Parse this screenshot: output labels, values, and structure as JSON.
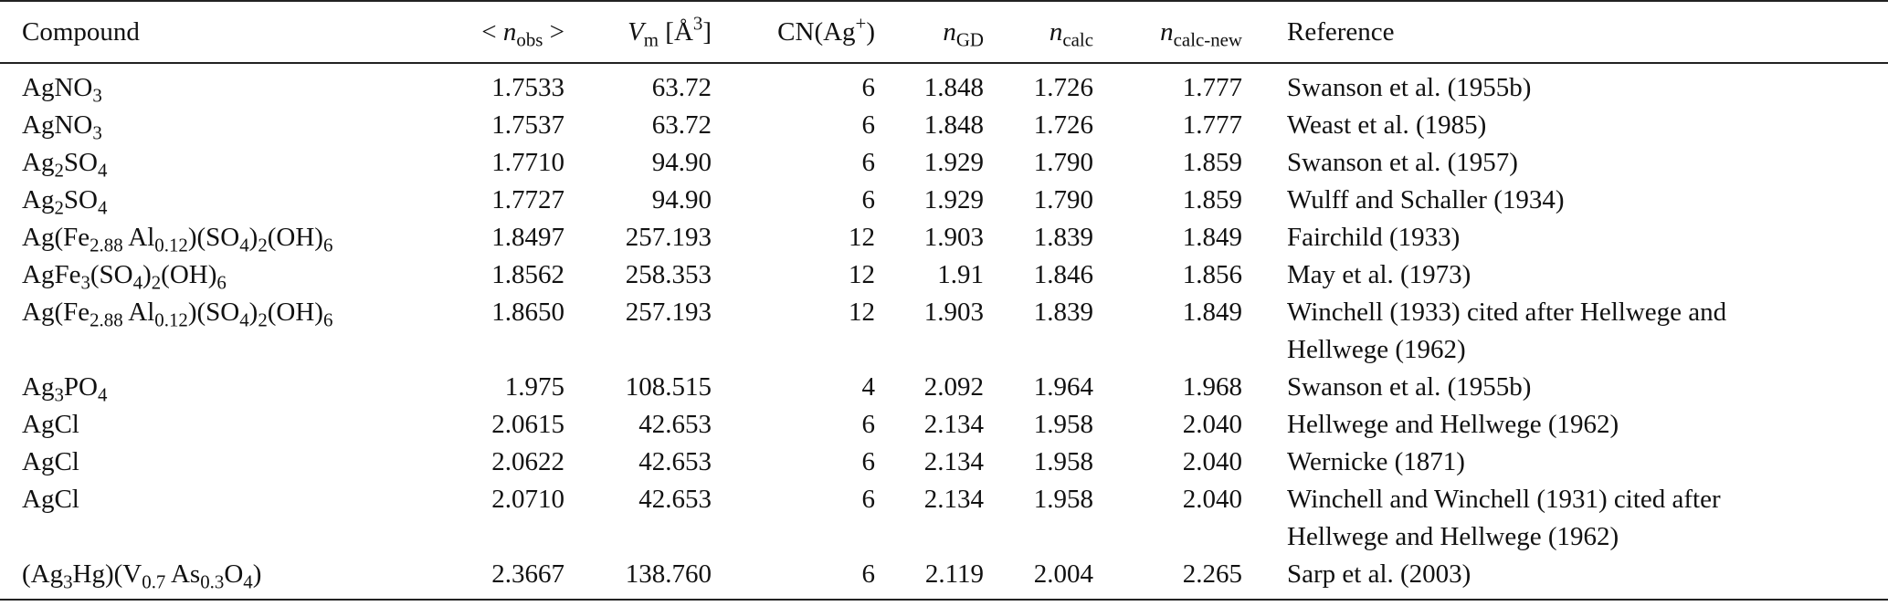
{
  "table": {
    "header": [
      "Compound",
      [
        {
          "t": "< "
        },
        {
          "i": "n"
        },
        {
          "sub": "obs"
        },
        {
          "t": " >"
        }
      ],
      [
        {
          "i": "V"
        },
        {
          "sub": "m"
        },
        {
          "t": " [Å"
        },
        {
          "sup": "3"
        },
        {
          "t": "]"
        }
      ],
      [
        {
          "t": "CN(Ag"
        },
        {
          "sup": "+"
        },
        {
          "t": ")"
        }
      ],
      [
        {
          "i": "n"
        },
        {
          "sub": "GD"
        }
      ],
      [
        {
          "i": "n"
        },
        {
          "sub": "calc"
        }
      ],
      [
        {
          "i": "n"
        },
        {
          "sub": "calc-new"
        }
      ],
      "Reference"
    ],
    "rows": [
      [
        [
          {
            "t": "AgNO"
          },
          {
            "sub": "3"
          }
        ],
        "1.7533",
        "63.72",
        "6",
        "1.848",
        "1.726",
        "1.777",
        "Swanson et al. (1955b)"
      ],
      [
        [
          {
            "t": "AgNO"
          },
          {
            "sub": "3"
          }
        ],
        "1.7537",
        "63.72",
        "6",
        "1.848",
        "1.726",
        "1.777",
        "Weast et al. (1985)"
      ],
      [
        [
          {
            "t": "Ag"
          },
          {
            "sub": "2"
          },
          {
            "t": "SO"
          },
          {
            "sub": "4"
          }
        ],
        "1.7710",
        "94.90",
        "6",
        "1.929",
        "1.790",
        "1.859",
        "Swanson et al. (1957)"
      ],
      [
        [
          {
            "t": "Ag"
          },
          {
            "sub": "2"
          },
          {
            "t": "SO"
          },
          {
            "sub": "4"
          }
        ],
        "1.7727",
        "94.90",
        "6",
        "1.929",
        "1.790",
        "1.859",
        "Wulff and Schaller (1934)"
      ],
      [
        [
          {
            "t": "Ag(Fe"
          },
          {
            "sub": "2.88"
          },
          {
            "t": " Al"
          },
          {
            "sub": "0.12"
          },
          {
            "t": ")(SO"
          },
          {
            "sub": "4"
          },
          {
            "t": ")"
          },
          {
            "sub": "2"
          },
          {
            "t": "(OH)"
          },
          {
            "sub": "6"
          }
        ],
        "1.8497",
        "257.193",
        "12",
        "1.903",
        "1.839",
        "1.849",
        "Fairchild (1933)"
      ],
      [
        [
          {
            "t": "AgFe"
          },
          {
            "sub": "3"
          },
          {
            "t": "(SO"
          },
          {
            "sub": "4"
          },
          {
            "t": ")"
          },
          {
            "sub": "2"
          },
          {
            "t": "(OH)"
          },
          {
            "sub": "6"
          }
        ],
        "1.8562",
        "258.353",
        "12",
        "1.91",
        "1.846",
        "1.856",
        "May et al. (1973)"
      ],
      [
        [
          {
            "t": "Ag(Fe"
          },
          {
            "sub": "2.88"
          },
          {
            "t": " Al"
          },
          {
            "sub": "0.12"
          },
          {
            "t": ")(SO"
          },
          {
            "sub": "4"
          },
          {
            "t": ")"
          },
          {
            "sub": "2"
          },
          {
            "t": "(OH)"
          },
          {
            "sub": "6"
          }
        ],
        "1.8650",
        "257.193",
        "12",
        "1.903",
        "1.839",
        "1.849",
        "Winchell (1933) cited after Hellwege and Hellwege (1962)"
      ],
      [
        [
          {
            "t": "Ag"
          },
          {
            "sub": "3"
          },
          {
            "t": "PO"
          },
          {
            "sub": "4"
          }
        ],
        "1.975",
        "108.515",
        "4",
        "2.092",
        "1.964",
        "1.968",
        "Swanson et al. (1955b)"
      ],
      [
        "AgCl",
        "2.0615",
        "42.653",
        "6",
        "2.134",
        "1.958",
        "2.040",
        "Hellwege and Hellwege (1962)"
      ],
      [
        "AgCl",
        "2.0622",
        "42.653",
        "6",
        "2.134",
        "1.958",
        "2.040",
        "Wernicke (1871)"
      ],
      [
        "AgCl",
        "2.0710",
        "42.653",
        "6",
        "2.134",
        "1.958",
        "2.040",
        "Winchell and Winchell (1931) cited after Hellwege and Hellwege (1962)"
      ],
      [
        [
          {
            "t": "(Ag"
          },
          {
            "sub": "3"
          },
          {
            "t": "Hg)(V"
          },
          {
            "sub": "0.7"
          },
          {
            "t": " As"
          },
          {
            "sub": "0.3"
          },
          {
            "t": "O"
          },
          {
            "sub": "4"
          },
          {
            "t": ")"
          }
        ],
        "2.3667",
        "138.760",
        "6",
        "2.119",
        "2.004",
        "2.265",
        "Sarp et al. (2003)"
      ]
    ]
  }
}
